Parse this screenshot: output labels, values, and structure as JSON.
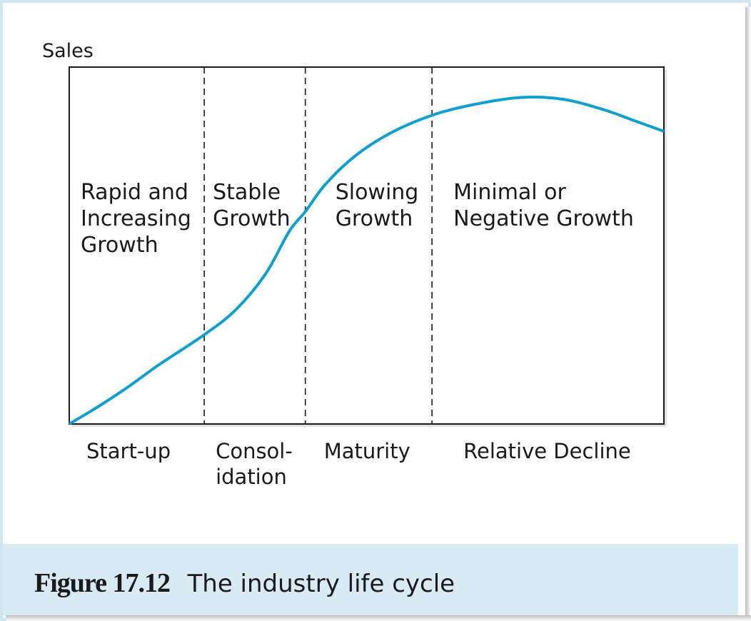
{
  "caption": {
    "number": "Figure 17.12",
    "text": "The industry life cycle"
  },
  "colors": {
    "curve": "#0f9fd0",
    "caption_band": "#d8eaf4",
    "border": "#d2e6f1",
    "axes": "#1a1a1a"
  },
  "chart_data": {
    "type": "line",
    "title": "",
    "xlabel": "",
    "ylabel": "Sales",
    "grid": false,
    "legend": "none",
    "xlim": [
      0,
      100
    ],
    "ylim": [
      0,
      100
    ],
    "stage_boundaries": [
      22.7,
      39.7,
      61
    ],
    "stages": [
      {
        "name": [
          "Start-up"
        ],
        "growth": [
          "Rapid and",
          "Increasing",
          "Growth"
        ]
      },
      {
        "name": [
          "Consol-",
          "idation"
        ],
        "growth": [
          "Stable",
          "Growth"
        ]
      },
      {
        "name": [
          "Maturity"
        ],
        "growth": [
          "Slowing",
          "Growth"
        ]
      },
      {
        "name": [
          "Relative Decline"
        ],
        "growth": [
          "Minimal or",
          "Negative Growth"
        ]
      }
    ],
    "series": [
      {
        "values": [
          [
            0,
            0
          ],
          [
            5,
            5
          ],
          [
            10,
            10.5
          ],
          [
            15,
            16.5
          ],
          [
            22.7,
            25
          ],
          [
            28,
            32
          ],
          [
            33,
            42
          ],
          [
            37,
            54
          ],
          [
            39.7,
            59.5
          ],
          [
            43,
            67
          ],
          [
            48,
            75
          ],
          [
            54,
            81.5
          ],
          [
            61,
            86.5
          ],
          [
            68,
            89.5
          ],
          [
            76,
            91.5
          ],
          [
            83,
            91
          ],
          [
            90,
            88
          ],
          [
            95,
            85
          ],
          [
            100,
            82
          ]
        ]
      }
    ]
  }
}
